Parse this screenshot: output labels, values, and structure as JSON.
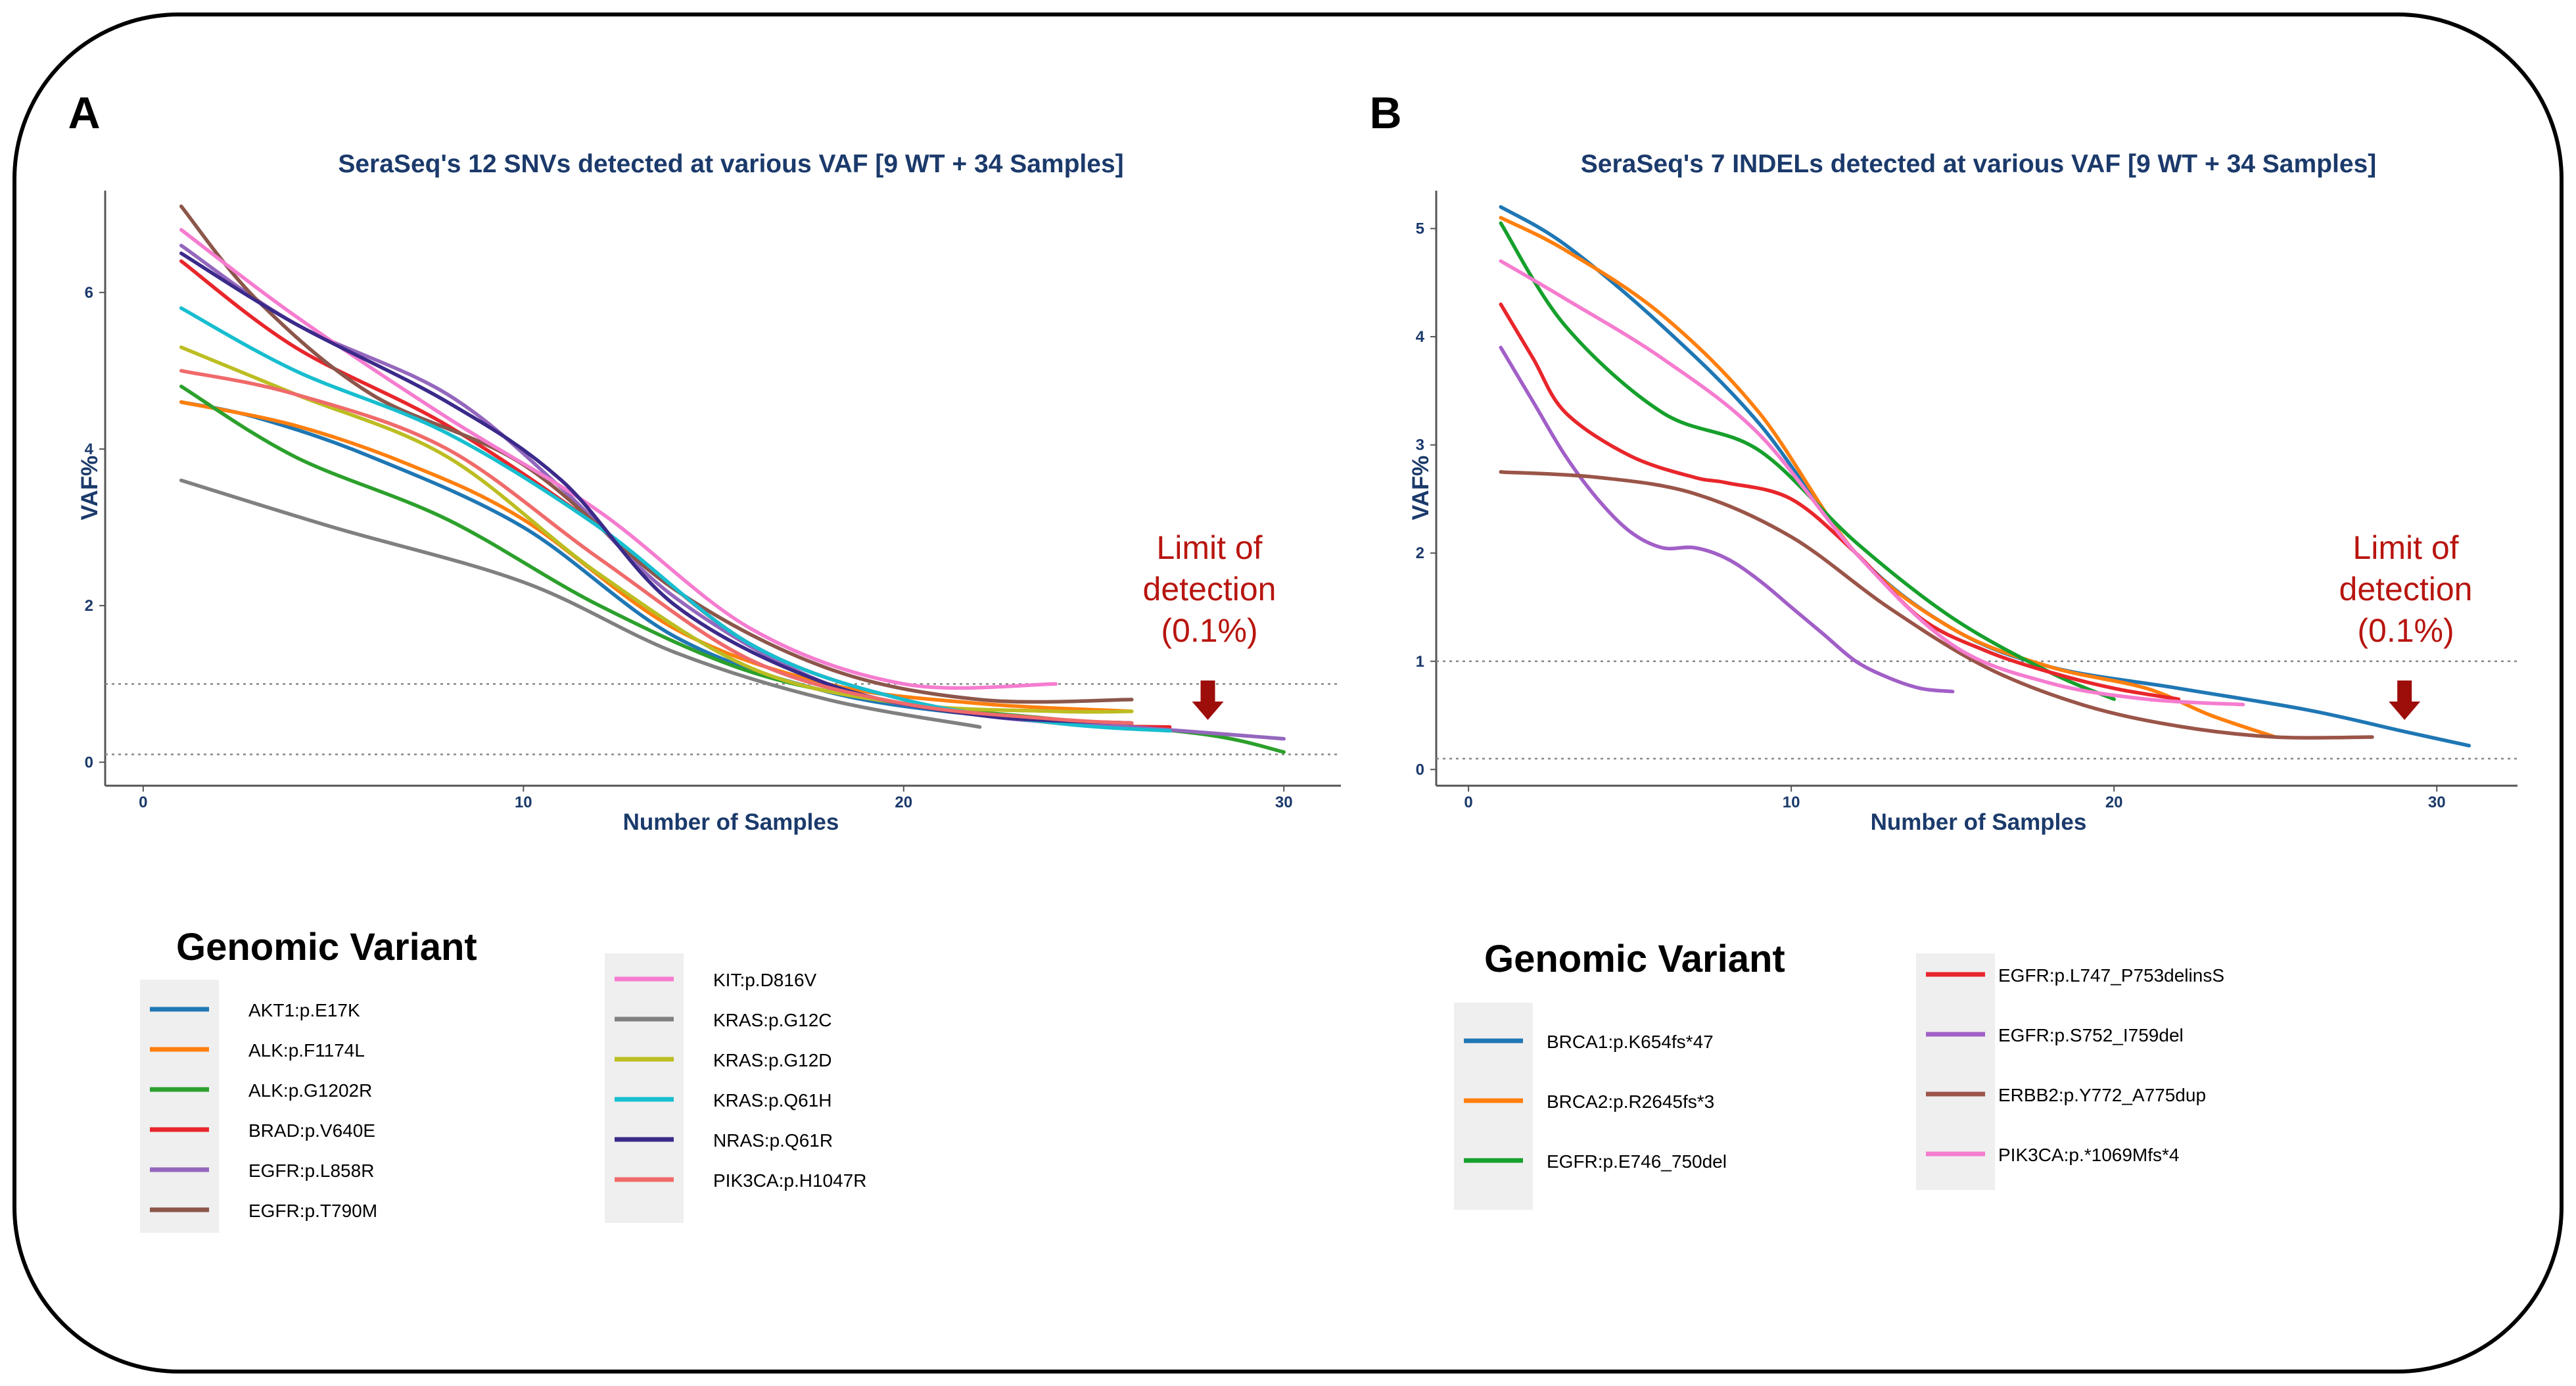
{
  "panels": [
    {
      "letter": "A",
      "chart_data": {
        "type": "line",
        "title": "SeraSeq's 12 SNVs detected at various VAF [9 WT + 34 Samples]",
        "xlabel": "Number of Samples",
        "ylabel": "VAF%",
        "xlim": [
          -1,
          31.5
        ],
        "ylim": [
          -0.3,
          7.3
        ],
        "xticks": [
          0,
          10,
          20,
          30
        ],
        "yticks": [
          0,
          2,
          4,
          6
        ],
        "reference_lines_y": [
          1,
          0.1
        ],
        "series": [
          {
            "name": "AKT1:p.E17K",
            "color": "#1f77b4",
            "x": [
              1,
              3,
              6,
              10,
              14,
              18,
              22,
              26
            ],
            "y": [
              4.6,
              4.4,
              3.9,
              3.0,
              1.6,
              0.9,
              0.6,
              0.45
            ]
          },
          {
            "name": "ALK:p.F1174L",
            "color": "#ff7f0e",
            "x": [
              1,
              4,
              7,
              10,
              14,
              18,
              22,
              26
            ],
            "y": [
              4.6,
              4.3,
              3.8,
              3.1,
              1.7,
              1.0,
              0.75,
              0.65
            ]
          },
          {
            "name": "ALK:p.G1202R",
            "color": "#2ca02c",
            "x": [
              1,
              4,
              8,
              12,
              16,
              20,
              24,
              28,
              30
            ],
            "y": [
              4.8,
              3.9,
              3.1,
              2.0,
              1.15,
              0.75,
              0.55,
              0.35,
              0.13
            ]
          },
          {
            "name": "BRAD:p.V640E",
            "color": "#e8262b",
            "x": [
              1,
              4,
              8,
              12,
              16,
              20,
              24,
              27
            ],
            "y": [
              6.4,
              5.3,
              4.3,
              3.0,
              1.5,
              0.8,
              0.5,
              0.45
            ]
          },
          {
            "name": "EGFR:p.L858R",
            "color": "#9467bd",
            "x": [
              1,
              4,
              8,
              11,
              14,
              18,
              22,
              26,
              30
            ],
            "y": [
              6.6,
              5.6,
              4.7,
              3.5,
              2.1,
              1.0,
              0.6,
              0.45,
              0.3
            ]
          },
          {
            "name": "EGFR:p.T790M",
            "color": "#8c564b",
            "x": [
              1,
              3,
              6,
              10,
              14,
              18,
              22,
              26
            ],
            "y": [
              7.1,
              5.9,
              4.7,
              3.8,
              2.2,
              1.2,
              0.8,
              0.8
            ]
          },
          {
            "name": "KIT:p.D816V",
            "color": "#f57ccf",
            "x": [
              1,
              4,
              8,
              12,
              16,
              20,
              24
            ],
            "y": [
              6.8,
              5.7,
              4.4,
              3.2,
              1.7,
              1.0,
              1.0
            ]
          },
          {
            "name": "KRAS:p.G12C",
            "color": "#808080",
            "x": [
              1,
              5,
              10,
              14,
              18,
              22
            ],
            "y": [
              3.6,
              3.0,
              2.3,
              1.4,
              0.8,
              0.45
            ]
          },
          {
            "name": "KRAS:p.G12D",
            "color": "#bcbd22",
            "x": [
              1,
              4,
              8,
              12,
              16,
              20,
              24,
              26
            ],
            "y": [
              5.3,
              4.7,
              3.9,
              2.4,
              1.2,
              0.75,
              0.65,
              0.65
            ]
          },
          {
            "name": "KRAS:p.Q61H",
            "color": "#17becf",
            "x": [
              1,
              4,
              8,
              12,
              16,
              20,
              24,
              27
            ],
            "y": [
              5.8,
              5.0,
              4.2,
              3.0,
              1.5,
              0.8,
              0.5,
              0.4
            ]
          },
          {
            "name": "NRAS:p.Q61R",
            "color": "#3b2a8a",
            "x": [
              1,
              4,
              8,
              11,
              14,
              18,
              22,
              26
            ],
            "y": [
              6.5,
              5.6,
              4.6,
              3.6,
              2.0,
              1.0,
              0.6,
              0.5
            ]
          },
          {
            "name": "PIK3CA:p.H1047R",
            "color": "#f06a6a",
            "x": [
              1,
              4,
              8,
              12,
              16,
              20,
              24,
              26
            ],
            "y": [
              5.0,
              4.7,
              4.0,
              2.6,
              1.3,
              0.75,
              0.55,
              0.5
            ]
          }
        ],
        "annotation": {
          "text_lines": [
            "Limit of",
            "detection",
            "(0.1%)"
          ],
          "arrow_x": 28
        }
      },
      "legend": {
        "title": "Genomic Variant",
        "columns": [
          [
            "AKT1:p.E17K",
            "ALK:p.F1174L",
            "ALK:p.G1202R",
            "BRAD:p.V640E",
            "EGFR:p.L858R",
            "EGFR:p.T790M"
          ],
          [
            "KIT:p.D816V",
            "KRAS:p.G12C",
            "KRAS:p.G12D",
            "KRAS:p.Q61H",
            "NRAS:p.Q61R",
            "PIK3CA:p.H1047R"
          ]
        ]
      }
    },
    {
      "letter": "B",
      "chart_data": {
        "type": "line",
        "title": "SeraSeq's 7 INDELs detected at various VAF [9 WT + 34 Samples]",
        "xlabel": "Number of Samples",
        "ylabel": "VAF%",
        "xlim": [
          -1,
          32.5
        ],
        "ylim": [
          -0.15,
          5.35
        ],
        "xticks": [
          0,
          10,
          20,
          30
        ],
        "yticks": [
          0,
          1,
          2,
          3,
          4,
          5
        ],
        "reference_lines_y": [
          1,
          0.1
        ],
        "series": [
          {
            "name": "BRCA1:p.K654fs*47",
            "color": "#1f77b4",
            "x": [
              1,
              3,
              6,
              9,
              12,
              15,
              18,
              22,
              26,
              29,
              31
            ],
            "y": [
              5.2,
              4.85,
              4.1,
              3.2,
              2.0,
              1.3,
              0.95,
              0.75,
              0.55,
              0.35,
              0.22
            ]
          },
          {
            "name": "BRCA2:p.R2645fs*3",
            "color": "#ff7f0e",
            "x": [
              1,
              3,
              6,
              9,
              12,
              15,
              18,
              21,
              23,
              25
            ],
            "y": [
              5.1,
              4.8,
              4.2,
              3.3,
              2.0,
              1.3,
              0.95,
              0.75,
              0.5,
              0.3
            ]
          },
          {
            "name": "EGFR:p.E746_750del",
            "color": "#16a02c",
            "x": [
              1,
              3,
              6,
              9,
              12,
              15,
              18,
              20
            ],
            "y": [
              5.05,
              4.1,
              3.3,
              2.95,
              2.1,
              1.4,
              0.9,
              0.65
            ]
          },
          {
            "name": "EGFR:p.L747_P753delinsS",
            "color": "#e8262b",
            "x": [
              1,
              2,
              3,
              5,
              7,
              8,
              10,
              12,
              14,
              16,
              18,
              20,
              22
            ],
            "y": [
              4.3,
              3.8,
              3.3,
              2.9,
              2.7,
              2.65,
              2.5,
              2.0,
              1.4,
              1.1,
              0.9,
              0.75,
              0.65
            ]
          },
          {
            "name": "EGFR:p.S752_I759del",
            "color": "#a15fc7",
            "x": [
              1,
              2,
              3,
              4,
              5,
              6,
              7,
              8,
              9,
              10,
              11,
              12,
              13,
              14,
              15
            ],
            "y": [
              3.9,
              3.4,
              2.9,
              2.5,
              2.2,
              2.05,
              2.05,
              1.95,
              1.75,
              1.5,
              1.25,
              1.0,
              0.85,
              0.75,
              0.72
            ]
          },
          {
            "name": "ERBB2:p.Y772_A775dup",
            "color": "#9a5548",
            "x": [
              1,
              4,
              7,
              10,
              13,
              16,
              19,
              22,
              25,
              28
            ],
            "y": [
              2.75,
              2.7,
              2.55,
              2.15,
              1.5,
              0.95,
              0.6,
              0.4,
              0.3,
              0.3
            ]
          },
          {
            "name": "PIK3CA:p.*1069Mfs*4",
            "color": "#f57ccf",
            "x": [
              1,
              3,
              6,
              9,
              12,
              15,
              18,
              21,
              24
            ],
            "y": [
              4.7,
              4.35,
              3.8,
              3.1,
              2.0,
              1.15,
              0.8,
              0.65,
              0.6
            ]
          }
        ],
        "annotation": {
          "text_lines": [
            "Limit of",
            "detection",
            "(0.1%)"
          ],
          "arrow_x": 29
        }
      },
      "legend": {
        "title": "Genomic Variant",
        "columns": [
          [
            "BRCA1:p.K654fs*47",
            "BRCA2:p.R2645fs*3",
            "EGFR:p.E746_750del"
          ],
          [
            "EGFR:p.L747_P753delinsS",
            "EGFR:p.S752_I759del",
            "ERBB2:p.Y772_A775dup",
            "PIK3CA:p.*1069Mfs*4"
          ]
        ]
      }
    }
  ]
}
